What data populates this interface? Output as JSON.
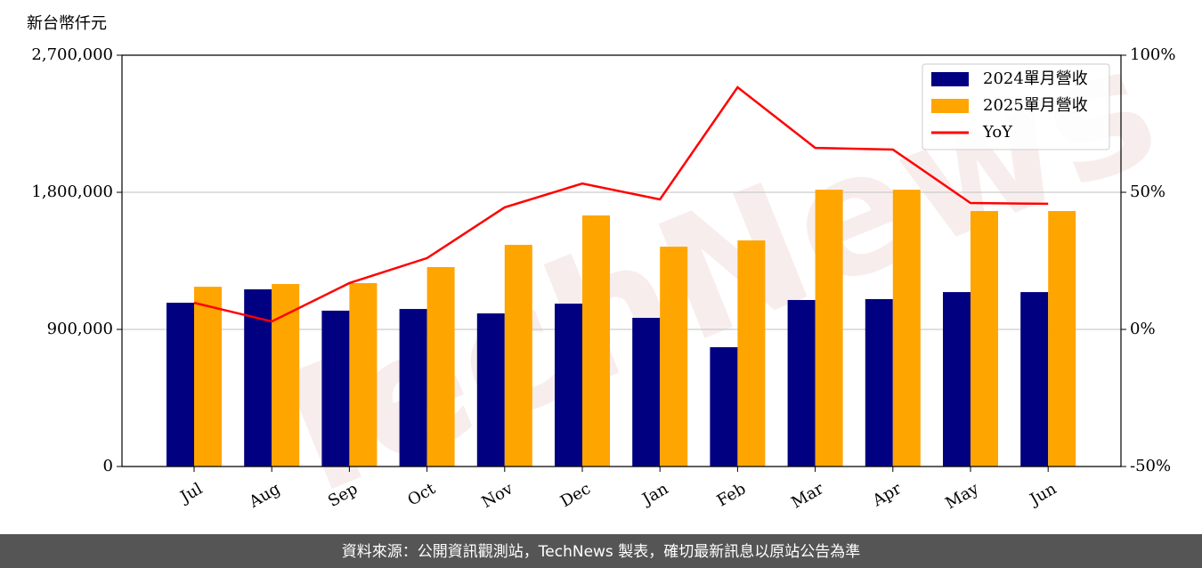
{
  "chart_data": {
    "type": "bar",
    "ylabel": "新台幣仟元",
    "watermark": "TechNews",
    "categories": [
      "Jul",
      "Aug",
      "Sep",
      "Oct",
      "Nov",
      "Dec",
      "Jan",
      "Feb",
      "Mar",
      "Apr",
      "May",
      "Jun"
    ],
    "series": [
      {
        "name": "2024單月營收",
        "color": "#000080",
        "values": [
          1075000,
          1163000,
          1023000,
          1034000,
          1005000,
          1069000,
          976000,
          783000,
          1093000,
          1099000,
          1145000,
          1145000
        ]
      },
      {
        "name": "2025單月營收",
        "color": "#ffa500",
        "values": [
          1180000,
          1198000,
          1204000,
          1309000,
          1455000,
          1648000,
          1443000,
          1484000,
          1817000,
          1817000,
          1677000,
          1677000
        ]
      },
      {
        "name": "YoY",
        "color": "#ff0000",
        "type": "line",
        "axis": "y2",
        "values": [
          9.7,
          2.9,
          16.9,
          26.0,
          44.5,
          53.2,
          47.4,
          88.3,
          66.2,
          65.6,
          46.1,
          45.8
        ]
      }
    ],
    "ylim": [
      0,
      2700000
    ],
    "yticks": [
      {
        "value": 0,
        "label": "0"
      },
      {
        "value": 900000,
        "label": "900,000"
      },
      {
        "value": 1800000,
        "label": "1,800,000"
      },
      {
        "value": 2700000,
        "label": "2,700,000"
      }
    ],
    "y2lim": [
      -50,
      100
    ],
    "y2ticks": [
      {
        "value": -50,
        "label": "-50%"
      },
      {
        "value": 0,
        "label": "0%"
      },
      {
        "value": 50,
        "label": "50%"
      },
      {
        "value": 100,
        "label": "100%"
      }
    ],
    "grid": true,
    "legend": "upper right"
  },
  "footer": "資料來源：公開資訊觀測站，TechNews 製表，確切最新訊息以原站公告為準"
}
